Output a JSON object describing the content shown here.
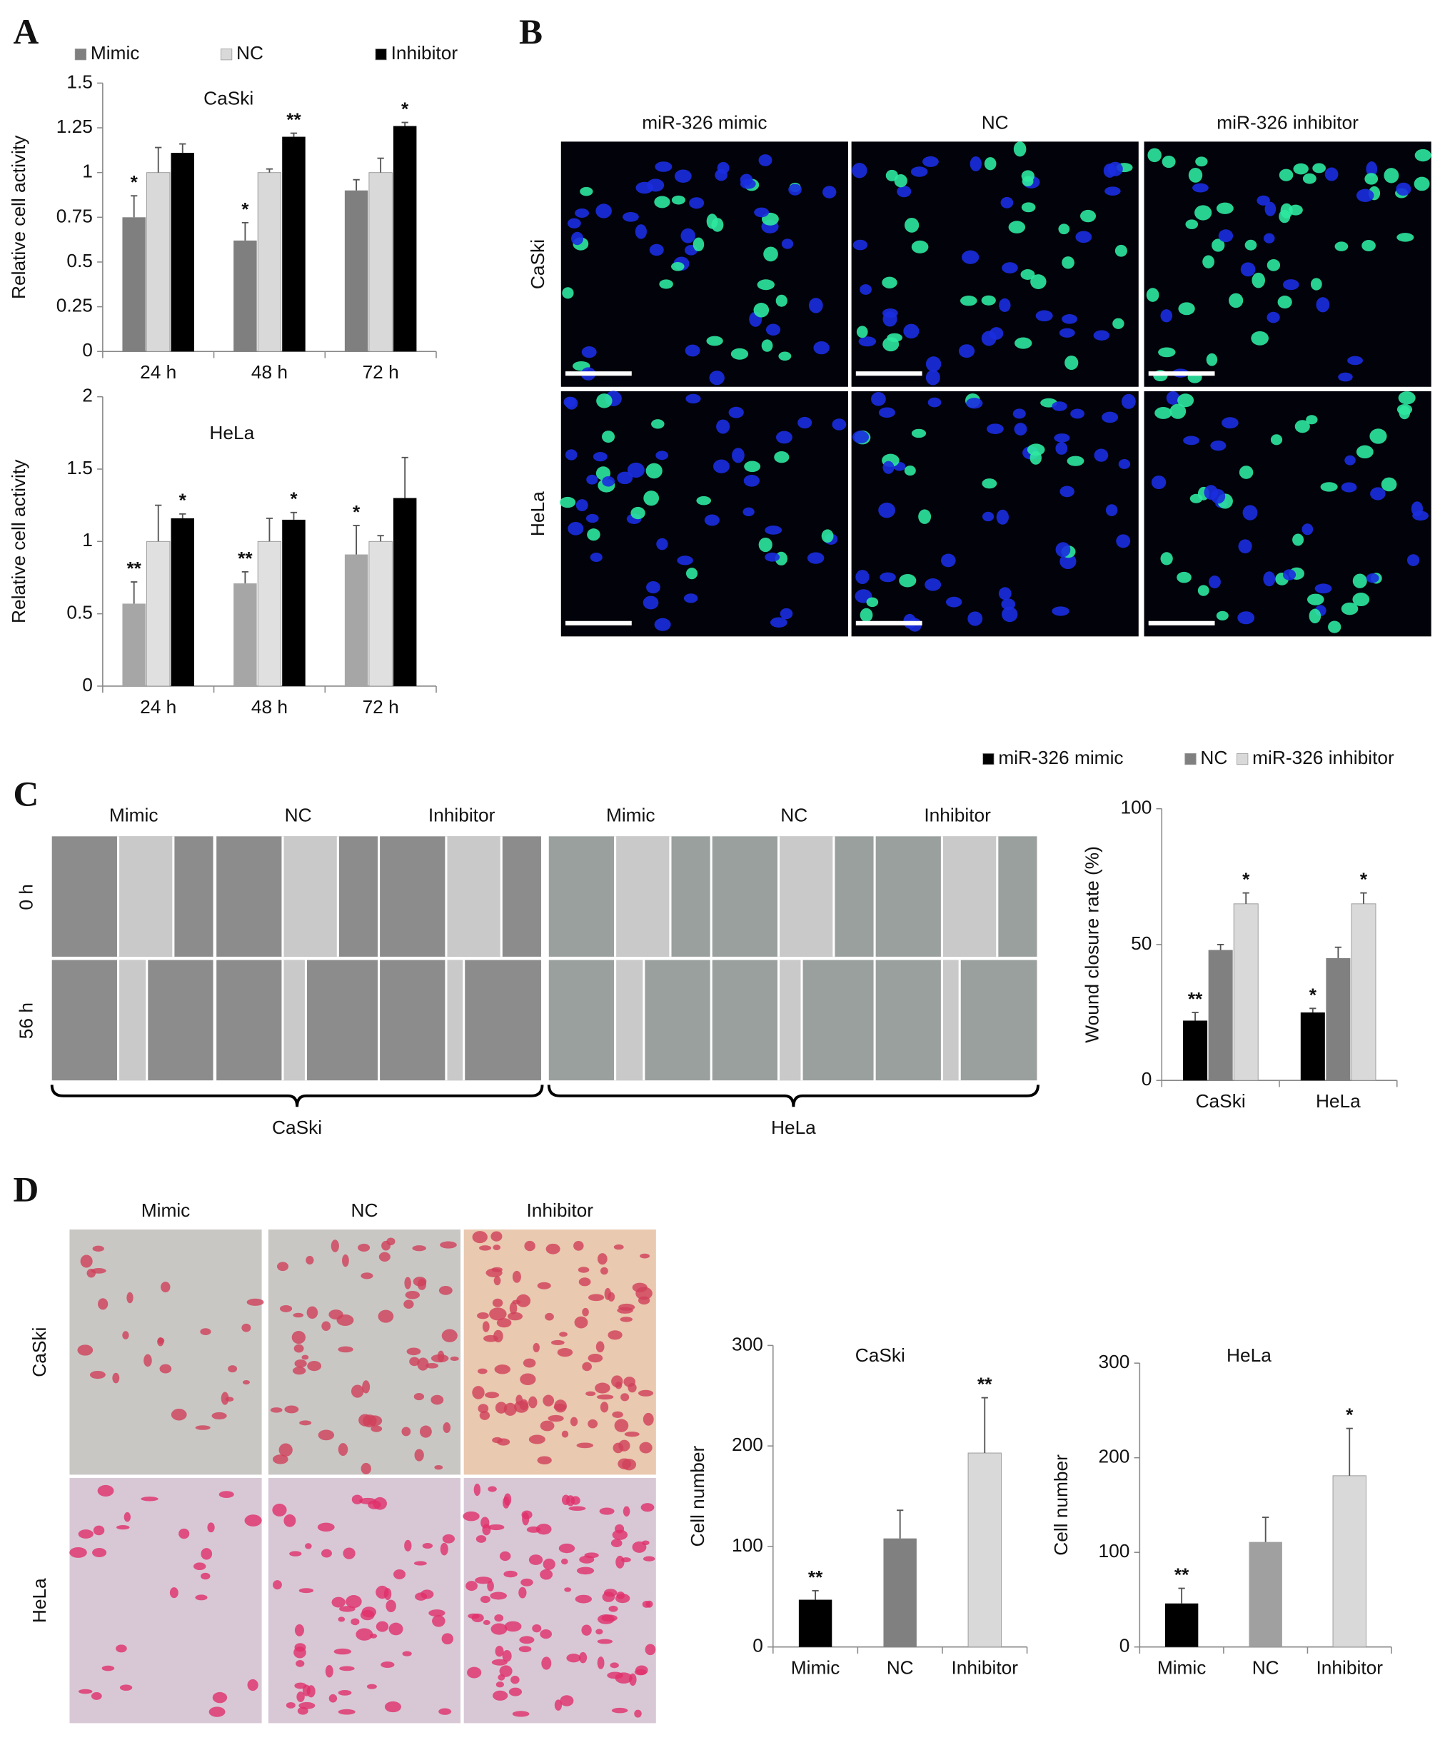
{
  "figure": {
    "panel_labels": [
      "A",
      "B",
      "C",
      "D"
    ],
    "panel_b": {
      "columns": [
        "miR-326 mimic",
        "NC",
        "miR-326 inhibitor"
      ],
      "rows": [
        "CaSki",
        "HeLa"
      ]
    },
    "panel_c": {
      "columns": [
        "Mimic",
        "NC",
        "Inhibitor",
        "Mimic",
        "NC",
        "Inhibitor"
      ],
      "rows": [
        "0 h",
        "56 h"
      ],
      "groups": [
        "CaSki",
        "HeLa"
      ]
    },
    "panel_d": {
      "columns": [
        "Mimic",
        "NC",
        "Inhibitor"
      ],
      "rows": [
        "CaSki",
        "HeLa"
      ]
    }
  },
  "chart_data": [
    {
      "type": "bar",
      "title": "CaSki",
      "y_label": "Relative cell activity",
      "legend": "top",
      "categories": [
        "24 h",
        "48 h",
        "72 h"
      ],
      "series": [
        {
          "name": "Mimic",
          "color": "#7f7f7f",
          "values": [
            0.75,
            0.62,
            0.9
          ],
          "errors": [
            0.12,
            0.1,
            0.06
          ],
          "significance": [
            "*",
            "*",
            null
          ]
        },
        {
          "name": "NC",
          "color": "#d9d9d9",
          "values": [
            1,
            1,
            1
          ],
          "errors": [
            0.14,
            0.02,
            0.08
          ],
          "significance": [
            null,
            null,
            null
          ]
        },
        {
          "name": "Inhibitor",
          "color": "#000000",
          "values": [
            1.11,
            1.2,
            1.26
          ],
          "errors": [
            0.05,
            0.02,
            0.02
          ],
          "significance": [
            null,
            "**",
            "*"
          ]
        }
      ],
      "ylim": [
        0,
        1.5
      ],
      "yticks": [
        0,
        0.25,
        0.5,
        0.75,
        1,
        1.25,
        1.5
      ],
      "grid": false
    },
    {
      "type": "bar",
      "title": "HeLa",
      "y_label": "Relative cell activity",
      "categories": [
        "24 h",
        "48 h",
        "72 h"
      ],
      "series": [
        {
          "name": "Mimic",
          "color": "#a6a6a6",
          "values": [
            0.57,
            0.71,
            0.91
          ],
          "errors": [
            0.15,
            0.08,
            0.2
          ],
          "significance": [
            "**",
            "**",
            "*"
          ]
        },
        {
          "name": "NC",
          "color": "#e0e0e0",
          "values": [
            1,
            1,
            1
          ],
          "errors": [
            0.25,
            0.16,
            0.04
          ],
          "significance": [
            null,
            null,
            null
          ]
        },
        {
          "name": "Inhibitor",
          "color": "#000000",
          "values": [
            1.16,
            1.15,
            1.3
          ],
          "errors": [
            0.03,
            0.05,
            0.28
          ],
          "significance": [
            "*",
            "*",
            null
          ]
        }
      ],
      "ylim": [
        0,
        2
      ],
      "yticks": [
        0,
        0.5,
        1,
        1.5,
        2
      ],
      "grid": false
    },
    {
      "type": "bar",
      "y_label": "Wound closure rate (%)",
      "legend": "top",
      "categories": [
        "CaSki",
        "HeLa"
      ],
      "series": [
        {
          "name": "miR-326 mimic",
          "color": "#000000",
          "values": [
            22,
            25
          ],
          "errors": [
            3,
            1.5
          ],
          "significance": [
            "**",
            "*"
          ]
        },
        {
          "name": "NC",
          "color": "#808080",
          "values": [
            48,
            45
          ],
          "errors": [
            2,
            4
          ],
          "significance": [
            null,
            null
          ]
        },
        {
          "name": "miR-326 inhibitor",
          "color": "#d9d9d9",
          "values": [
            65,
            65
          ],
          "errors": [
            4,
            4
          ],
          "significance": [
            "*",
            "*"
          ]
        }
      ],
      "ylim": [
        0,
        100
      ],
      "yticks": [
        0,
        50,
        100
      ],
      "grid": false
    },
    {
      "type": "bar",
      "title": "CaSki",
      "y_label": "Cell number",
      "categories": [
        "Mimic",
        "NC",
        "Inhibitor"
      ],
      "series": [
        {
          "colors": [
            "#000000",
            "#808080",
            "#d9d9d9"
          ],
          "values": [
            47,
            108,
            193
          ],
          "errors": [
            9,
            28,
            55
          ],
          "significance": [
            "**",
            null,
            "**"
          ]
        }
      ],
      "ylim": [
        0,
        300
      ],
      "yticks": [
        0,
        100,
        200,
        300
      ],
      "grid": false
    },
    {
      "type": "bar",
      "title": "HeLa",
      "y_label": "Cell number",
      "categories": [
        "Mimic",
        "NC",
        "Inhibitor"
      ],
      "series": [
        {
          "colors": [
            "#000000",
            "#a0a0a0",
            "#d9d9d9"
          ],
          "values": [
            46,
            111,
            181
          ],
          "errors": [
            16,
            26,
            50
          ],
          "significance": [
            "**",
            null,
            "*"
          ]
        }
      ],
      "ylim": [
        0,
        300
      ],
      "yticks": [
        0,
        100,
        200,
        300
      ],
      "grid": false
    }
  ]
}
